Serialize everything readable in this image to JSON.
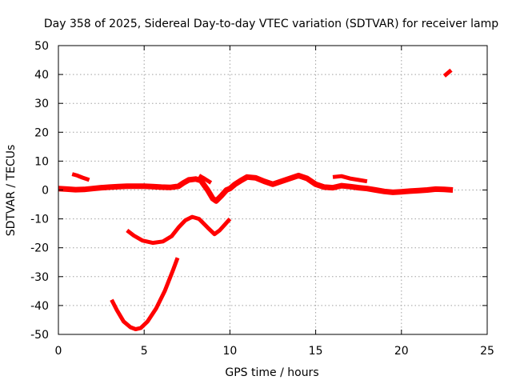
{
  "chart_data": {
    "type": "line",
    "title": "Day 358 of 2025, Sidereal Day-to-day VTEC variation (SDTVAR) for receiver lamp",
    "xlabel": "GPS time / hours",
    "ylabel": "SDTVAR / TECUs",
    "xlim": [
      0,
      25
    ],
    "ylim": [
      -50,
      50
    ],
    "xticks": [
      0,
      5,
      10,
      15,
      20,
      25
    ],
    "yticks": [
      -50,
      -40,
      -30,
      -20,
      -10,
      0,
      10,
      20,
      30,
      40,
      50
    ],
    "grid": true,
    "color": "#ff0000",
    "series": [
      {
        "name": "main-band",
        "points": [
          [
            0,
            0.5
          ],
          [
            0.5,
            0.3
          ],
          [
            1,
            0.1
          ],
          [
            1.5,
            0.2
          ],
          [
            2,
            0.5
          ],
          [
            2.5,
            0.8
          ],
          [
            3,
            1
          ],
          [
            3.5,
            1.2
          ],
          [
            4,
            1.3
          ],
          [
            4.5,
            1.3
          ],
          [
            5,
            1.3
          ],
          [
            5.5,
            1.2
          ],
          [
            6,
            1
          ],
          [
            6.5,
            0.9
          ],
          [
            7,
            1.3
          ],
          [
            7.3,
            2.5
          ],
          [
            7.6,
            3.5
          ],
          [
            8,
            3.8
          ],
          [
            8.3,
            3.3
          ],
          [
            8.7,
            0
          ],
          [
            9,
            -3
          ],
          [
            9.2,
            -3.8
          ],
          [
            9.5,
            -2
          ],
          [
            9.8,
            0
          ],
          [
            10,
            0.5
          ],
          [
            10.3,
            2
          ],
          [
            10.7,
            3.5
          ],
          [
            11,
            4.5
          ],
          [
            11.5,
            4.2
          ],
          [
            12,
            3
          ],
          [
            12.5,
            2
          ],
          [
            13,
            3
          ],
          [
            13.5,
            4
          ],
          [
            14,
            5
          ],
          [
            14.5,
            4
          ],
          [
            15,
            2
          ],
          [
            15.5,
            1
          ],
          [
            16,
            0.8
          ],
          [
            16.5,
            1.5
          ],
          [
            17,
            1.2
          ],
          [
            17.5,
            0.8
          ],
          [
            18,
            0.5
          ],
          [
            18.5,
            0
          ],
          [
            19,
            -0.5
          ],
          [
            19.5,
            -0.8
          ],
          [
            20,
            -0.6
          ],
          [
            20.5,
            -0.4
          ],
          [
            21,
            -0.2
          ],
          [
            21.5,
            0
          ],
          [
            22,
            0.3
          ],
          [
            22.5,
            0.2
          ],
          [
            23,
            0
          ]
        ]
      },
      {
        "name": "short-segment",
        "points": [
          [
            0.8,
            5.5
          ],
          [
            1.1,
            5
          ],
          [
            1.4,
            4.3
          ],
          [
            1.8,
            3.5
          ]
        ]
      },
      {
        "name": "hump-upper",
        "points": [
          [
            8.2,
            5
          ],
          [
            8.5,
            4
          ],
          [
            8.9,
            2.5
          ]
        ]
      },
      {
        "name": "hump-right",
        "points": [
          [
            16,
            4.5
          ],
          [
            16.5,
            4.8
          ],
          [
            17,
            4
          ],
          [
            17.5,
            3.5
          ],
          [
            18,
            3
          ]
        ]
      },
      {
        "name": "dip-minus-18",
        "points": [
          [
            4,
            -14
          ],
          [
            4.4,
            -15.8
          ],
          [
            4.9,
            -17.5
          ],
          [
            5.5,
            -18.3
          ],
          [
            6.1,
            -17.8
          ],
          [
            6.6,
            -16
          ],
          [
            7,
            -13
          ],
          [
            7.4,
            -10.5
          ],
          [
            7.8,
            -9.3
          ],
          [
            8.2,
            -10
          ],
          [
            8.7,
            -13
          ],
          [
            9.1,
            -15.3
          ],
          [
            9.4,
            -14
          ],
          [
            9.7,
            -12
          ],
          [
            10,
            -10
          ]
        ]
      },
      {
        "name": "dip-minus-48",
        "points": [
          [
            3.1,
            -38
          ],
          [
            3.4,
            -41.5
          ],
          [
            3.8,
            -45.5
          ],
          [
            4.2,
            -47.5
          ],
          [
            4.5,
            -48.2
          ],
          [
            4.8,
            -47.8
          ],
          [
            5.2,
            -45.5
          ],
          [
            5.7,
            -41
          ],
          [
            6.2,
            -35
          ],
          [
            6.7,
            -27.5
          ],
          [
            6.95,
            -23.5
          ]
        ]
      },
      {
        "name": "outlier-40",
        "points": [
          [
            22.5,
            39.5
          ],
          [
            22.9,
            41.5
          ]
        ]
      }
    ]
  }
}
